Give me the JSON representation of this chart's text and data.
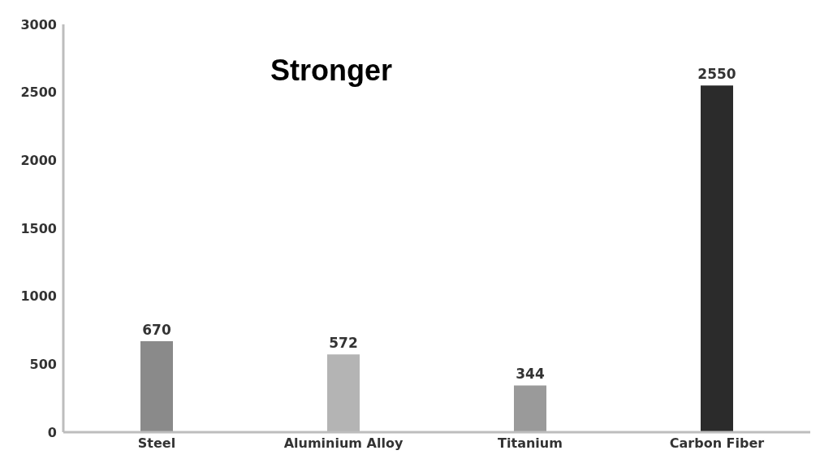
{
  "chart_data": {
    "type": "bar",
    "title": "Stronger",
    "categories": [
      "Steel",
      "Aluminium Alloy",
      "Titanium",
      "Carbon Fiber"
    ],
    "values": [
      670,
      572,
      344,
      2550
    ],
    "colors": [
      "#8a8a8a",
      "#b4b4b4",
      "#9a9a9a",
      "#2b2b2b"
    ],
    "ylim": [
      0,
      3000
    ],
    "yticks": [
      0,
      500,
      1000,
      1500,
      2000,
      2500,
      3000
    ],
    "grid": false,
    "data_labels": true
  }
}
